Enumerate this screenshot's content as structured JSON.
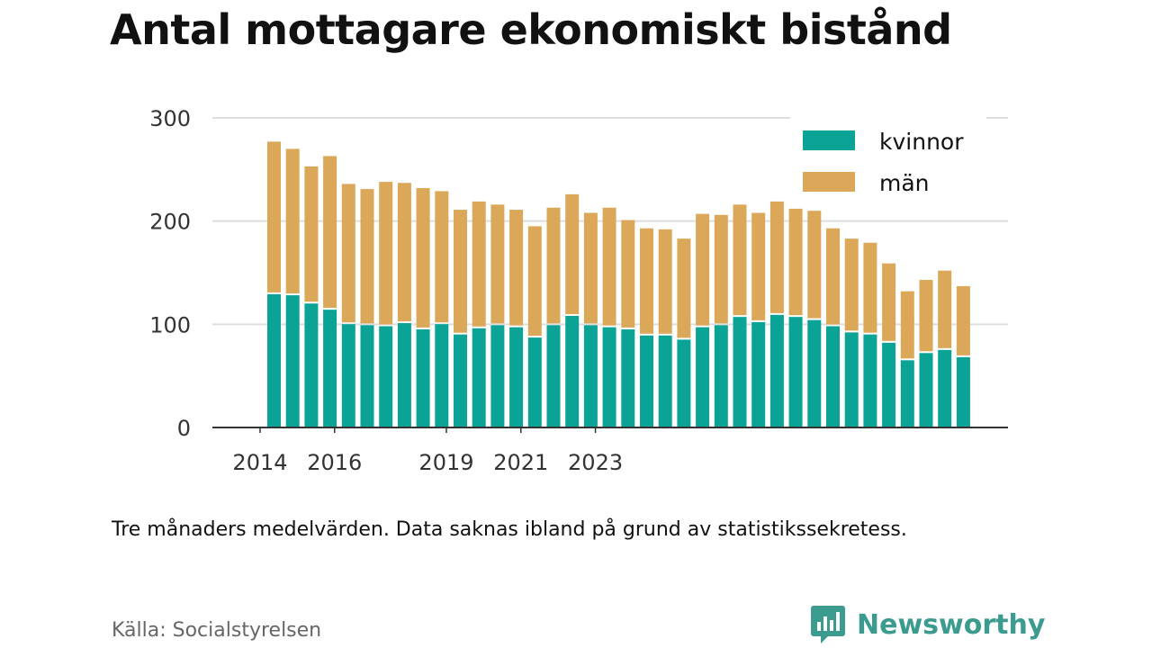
{
  "title": "Antal mottagare ekonomiskt bistånd",
  "note": "Tre månaders medelvärden. Data saknas ibland på grund av statistikssekretess.",
  "source": "Källa: Socialstyrelsen",
  "brand": {
    "name": "Newsworthy",
    "icon": "newsworthy-logo-icon",
    "color": "#3a9b8e"
  },
  "chart_data": {
    "type": "bar",
    "stacked": true,
    "ylim": [
      0,
      300
    ],
    "y_ticks": [
      0,
      100,
      200,
      300
    ],
    "x_tick_labels": [
      {
        "label": "2014",
        "position": -0.75
      },
      {
        "label": "2016",
        "position": 3.25
      },
      {
        "label": "2019",
        "position": 9.25
      },
      {
        "label": "2021",
        "position": 13.25
      },
      {
        "label": "2023",
        "position": 17.25
      }
    ],
    "grid": true,
    "legend_position": "top-right",
    "series": [
      {
        "name": "kvinnor",
        "color": "#0aa395",
        "values": [
          130,
          129,
          121,
          115,
          101,
          100,
          99,
          102,
          96,
          101,
          91,
          97,
          100,
          98,
          88,
          100,
          109,
          100,
          98,
          96,
          90,
          90,
          86,
          98,
          100,
          108,
          103,
          110,
          108,
          105,
          99,
          93,
          91,
          83,
          66,
          73,
          76,
          69
        ]
      },
      {
        "name": "män",
        "color": "#dba85a",
        "values": [
          147,
          141,
          132,
          148,
          135,
          131,
          139,
          135,
          136,
          128,
          120,
          122,
          116,
          113,
          107,
          113,
          117,
          108,
          115,
          105,
          103,
          102,
          97,
          109,
          106,
          108,
          105,
          109,
          104,
          105,
          94,
          90,
          88,
          76,
          66,
          70,
          76,
          68
        ]
      }
    ]
  }
}
